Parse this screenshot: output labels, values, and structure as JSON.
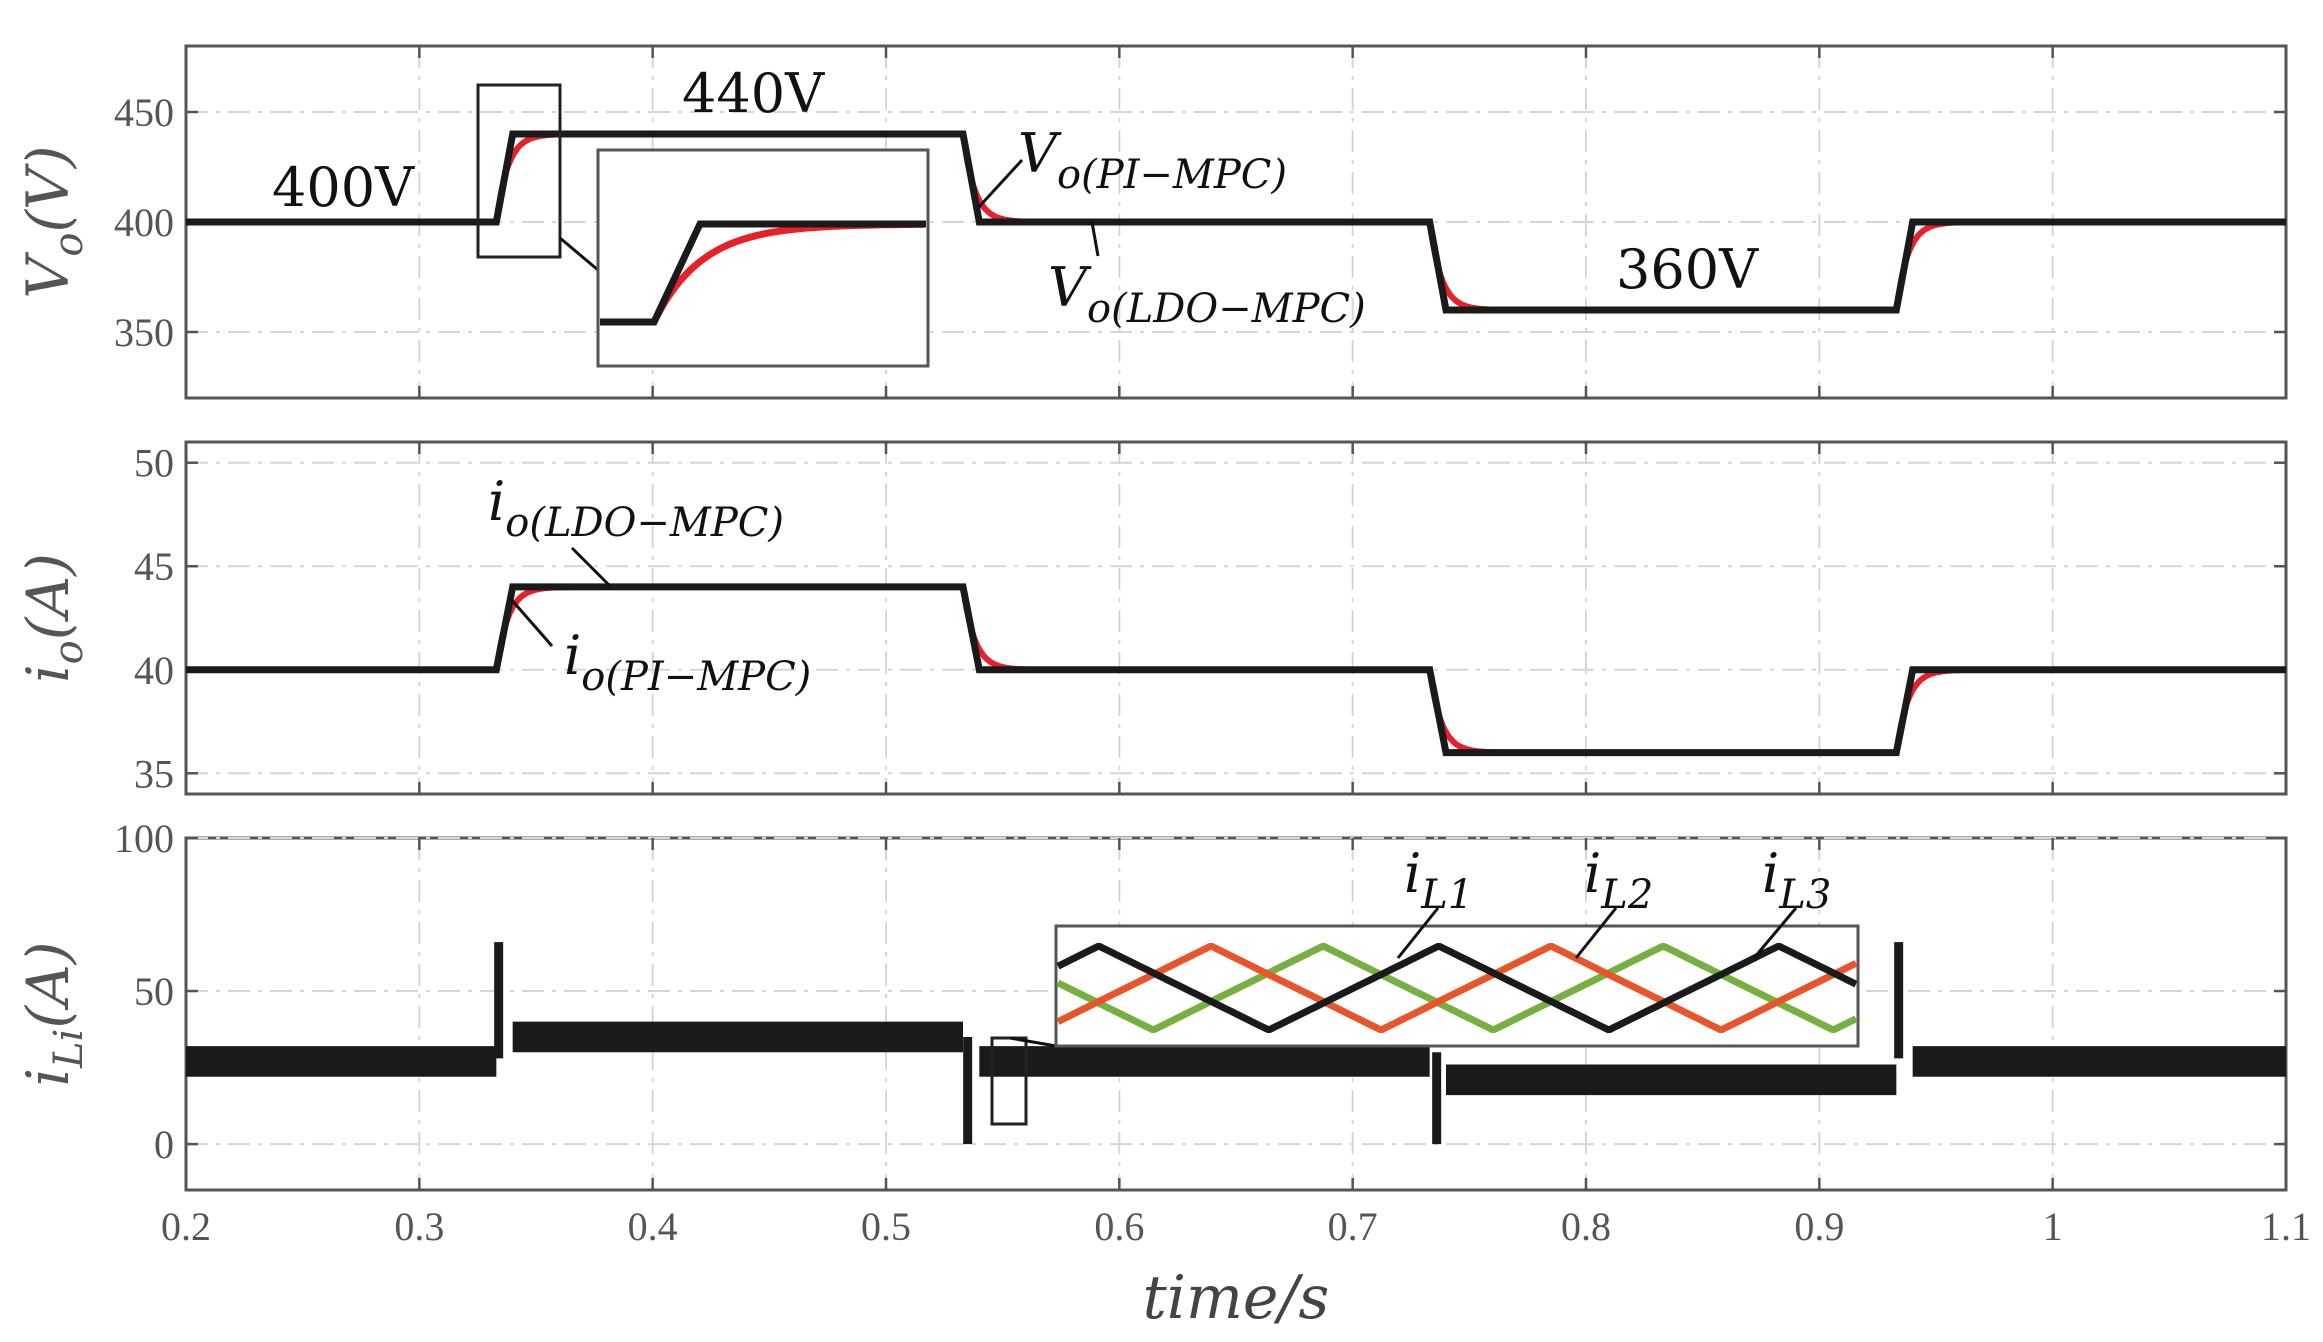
{
  "colors": {
    "ldo": "#1a1a1a",
    "pi": "#e8202a",
    "iL1": "#76b041",
    "iL2": "#e8552b",
    "iL3": "#1a1a1a"
  },
  "chart_data": [
    {
      "type": "line",
      "panel": "top",
      "ylabel": "Vo(V)",
      "xlim": [
        0.2,
        1.1
      ],
      "ylim": [
        320,
        480
      ],
      "yticks": [
        "350",
        "400",
        "450"
      ],
      "series": [
        {
          "name": "Vo(LDO-MPC)",
          "x": [
            0.2,
            0.333,
            0.34,
            0.533,
            0.54,
            0.733,
            0.74,
            0.933,
            0.94,
            1.1
          ],
          "y": [
            400,
            400,
            440,
            440,
            400,
            400,
            360,
            360,
            400,
            400
          ]
        },
        {
          "name": "Vo(PI-MPC)",
          "tau": 0.005,
          "steps": [
            [
              0.2,
              400
            ],
            [
              0.333,
              440
            ],
            [
              0.533,
              400
            ],
            [
              0.733,
              360
            ],
            [
              0.933,
              400
            ]
          ]
        }
      ],
      "annotations": {
        "v400": "400V",
        "v440": "440V",
        "v360": "360V",
        "pi_main": "V",
        "pi_sub1": "o",
        "pi_sub2": "(PI−MPC)",
        "ldo_main": "V",
        "ldo_sub1": "o",
        "ldo_sub2": "(LDO−MPC)"
      }
    },
    {
      "type": "line",
      "panel": "middle",
      "ylabel": "io(A)",
      "xlim": [
        0.2,
        1.1
      ],
      "ylim": [
        34,
        51
      ],
      "yticks": [
        "35",
        "40",
        "45",
        "50"
      ],
      "series": [
        {
          "name": "io(LDO-MPC)",
          "x": [
            0.2,
            0.333,
            0.34,
            0.533,
            0.54,
            0.733,
            0.74,
            0.933,
            0.94,
            1.1
          ],
          "y": [
            40,
            40,
            44,
            44,
            40,
            40,
            36,
            36,
            40,
            40
          ]
        },
        {
          "name": "io(PI-MPC)",
          "tau": 0.005,
          "steps": [
            [
              0.2,
              40
            ],
            [
              0.333,
              44
            ],
            [
              0.533,
              40
            ],
            [
              0.733,
              36
            ],
            [
              0.933,
              40
            ]
          ]
        }
      ],
      "annotations": {
        "ldo_main": "i",
        "ldo_sub": "o(LDO−MPC)",
        "pi_main": "i",
        "pi_sub": "o(PI−MPC)"
      }
    },
    {
      "type": "line",
      "panel": "bottom",
      "ylabel": "iLi(A)",
      "xlim": [
        0.2,
        1.1
      ],
      "ylim": [
        -15,
        100
      ],
      "yticks": [
        "0",
        "50",
        "100"
      ],
      "bands": [
        {
          "x": [
            0.2,
            0.333
          ],
          "y": [
            22,
            32
          ]
        },
        {
          "x": [
            0.34,
            0.533
          ],
          "y": [
            30,
            40
          ]
        },
        {
          "x": [
            0.54,
            0.733
          ],
          "y": [
            22,
            32
          ]
        },
        {
          "x": [
            0.74,
            0.933
          ],
          "y": [
            16,
            26
          ]
        },
        {
          "x": [
            0.94,
            1.1
          ],
          "y": [
            22,
            32
          ]
        }
      ],
      "spikes": [
        {
          "x": 0.334,
          "y0": 28,
          "y1": 66
        },
        {
          "x": 0.535,
          "y0": 0,
          "y1": 35
        },
        {
          "x": 0.736,
          "y0": 0,
          "y1": 30
        },
        {
          "x": 0.934,
          "y0": 28,
          "y1": 66
        }
      ],
      "annotations": {
        "iL1_main": "i",
        "iL1_sub": "L1",
        "iL2_main": "i",
        "iL2_sub": "L2",
        "iL3_main": "i",
        "iL3_sub": "L3"
      }
    }
  ],
  "xaxis": {
    "ticks": [
      "0.2",
      "0.3",
      "0.4",
      "0.5",
      "0.6",
      "0.7",
      "0.8",
      "0.9",
      "1",
      "1.1"
    ],
    "label": "time/s"
  }
}
